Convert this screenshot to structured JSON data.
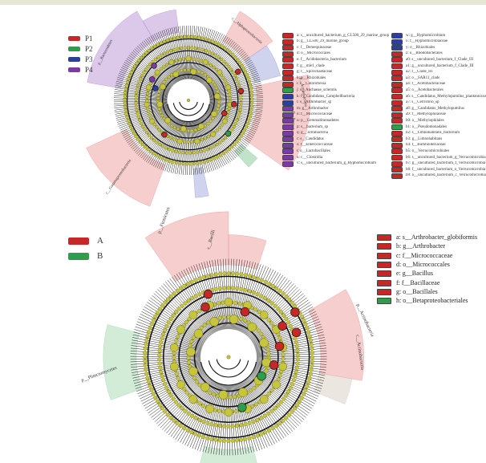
{
  "top": {
    "groups": [
      {
        "label": "P1",
        "color": "#c62828"
      },
      {
        "label": "P2",
        "color": "#2e9e4a"
      },
      {
        "label": "P3",
        "color": "#2a3f9f"
      },
      {
        "label": "P4",
        "color": "#7b3aa6"
      }
    ],
    "key_col1": [
      {
        "text": "a: s__uncultured_bacterium_g_CL500_29_marine_group",
        "color": "#c62828"
      },
      {
        "text": "b: g__CL500_29_marine_group",
        "color": "#c62828"
      },
      {
        "text": "c: f__Demequinaceae",
        "color": "#c62828"
      },
      {
        "text": "d: o__Micrococcales",
        "color": "#c62828"
      },
      {
        "text": "e: f__Acidobacteria_bacterium",
        "color": "#c62828"
      },
      {
        "text": "f: g__mle1_clade",
        "color": "#c62828"
      },
      {
        "text": "g: f__Spirochaetaceae",
        "color": "#c62828"
      },
      {
        "text": "h: o__Rhizobiales",
        "color": "#c62828"
      },
      {
        "text": "i: c__Chloroflexia",
        "color": "#c62828"
      },
      {
        "text": "j: s__Anchaeae_sclerotis",
        "color": "#2e9e4a"
      },
      {
        "text": "k: f__Candidatus_Campbellbacteria",
        "color": "#2a3f9f"
      },
      {
        "text": "l: s__Arthrobacter_sp",
        "color": "#2a3f9f"
      },
      {
        "text": "m: g__Arthrobacter",
        "color": "#7b3aa6"
      },
      {
        "text": "n: f__Micrococcaceae",
        "color": "#7b3aa6"
      },
      {
        "text": "o: p__Gemmatimonadetes",
        "color": "#7b3aa6"
      },
      {
        "text": "p: s__bacterium_sp",
        "color": "#7b3aa6"
      },
      {
        "text": "q: g__Terrabacteria",
        "color": "#7b3aa6"
      },
      {
        "text": "r: s__Candidatus",
        "color": "#7b3aa6"
      },
      {
        "text": "s: f__Enterococcaceae",
        "color": "#7b3aa6"
      },
      {
        "text": "t: o__Lactobacillales",
        "color": "#7b3aa6"
      },
      {
        "text": "u: c__Clostridia",
        "color": "#7b3aa6"
      },
      {
        "text": "v: s__uncultured_bacterium_g_Hyphomicrobium",
        "color": "#7b3aa6"
      }
    ],
    "key_col2": [
      {
        "text": "w: g__Hyphomicrobium",
        "color": "#2a3f9f"
      },
      {
        "text": "x: f__Hyphomicrobiaceae",
        "color": "#2a3f9f"
      },
      {
        "text": "y: o__Rhizobiales",
        "color": "#2a3f9f"
      },
      {
        "text": "z: o__Rhodobacterales",
        "color": "#c62828"
      },
      {
        "text": "a0: s__uncultured_bacterium_f_Clade_III",
        "color": "#c62828"
      },
      {
        "text": "a1: g__uncultured_bacterium_f_Clade_III",
        "color": "#c62828"
      },
      {
        "text": "a2: f__Clade_III",
        "color": "#c62828"
      },
      {
        "text": "a3: o__SAR11_clade",
        "color": "#c62828"
      },
      {
        "text": "a4: f__Acetobacteraceae",
        "color": "#c62828"
      },
      {
        "text": "a5: o__Acetobacterales",
        "color": "#c62828"
      },
      {
        "text": "a6: s__Candidatus_Methylopumilus_planktonicus",
        "color": "#c62828"
      },
      {
        "text": "a7: s__Cellvibrio_sp",
        "color": "#c62828"
      },
      {
        "text": "a8: g__Candidatus_Methylopumilus",
        "color": "#c62828"
      },
      {
        "text": "a9: f__Methylophilaceae",
        "color": "#c62828"
      },
      {
        "text": "b0: o__Methylophilales",
        "color": "#c62828"
      },
      {
        "text": "b1: o__Pseudomonadales",
        "color": "#2e9e4a"
      },
      {
        "text": "b2: s__Limnohabitans_bacterium",
        "color": "#c62828"
      },
      {
        "text": "b3: g__Limnohabitans",
        "color": "#c62828"
      },
      {
        "text": "b4: f__Burkholderiaceae",
        "color": "#c62828"
      },
      {
        "text": "b5: o__Verrucomicrobiales",
        "color": "#c62828"
      },
      {
        "text": "b6: s__uncultured_bacterium_g_Verrucomicrobia",
        "color": "#c62828"
      },
      {
        "text": "b7: g__uncultured_bacterium_f_Verrucomicrobia",
        "color": "#c62828"
      },
      {
        "text": "b8: f__uncultured_bacterium_o_Verrucomicrobia",
        "color": "#c62828"
      },
      {
        "text": "b9: o__uncultured_bacterium_c_Verrucomicrobia",
        "color": "#c62828"
      }
    ],
    "clade_labels": [
      "p__Actinobacteria",
      "p__Proteobacteria",
      "c__Gammaproteobacteria",
      "p__Bacteroidetes",
      "c__Alphaproteobacteria"
    ]
  },
  "bottom": {
    "groups": [
      {
        "label": "A",
        "color": "#c62828"
      },
      {
        "label": "B",
        "color": "#2e9e4a"
      }
    ],
    "key": [
      {
        "text": "a: s__Arthrobacter_globiformis",
        "color": "#c62828"
      },
      {
        "text": "b: g__Arthrobacter",
        "color": "#c62828"
      },
      {
        "text": "c: f__Micrococcaceae",
        "color": "#c62828"
      },
      {
        "text": "d: o__Micrococcales",
        "color": "#c62828"
      },
      {
        "text": "e: g__Bacillus",
        "color": "#c62828"
      },
      {
        "text": "f: f__Bacillaceae",
        "color": "#c62828"
      },
      {
        "text": "g: o__Bacillales",
        "color": "#c62828"
      },
      {
        "text": "h: o__Betaproteobacteriales",
        "color": "#2e9e4a"
      }
    ],
    "clade_labels": [
      "p__Firmicutes",
      "c__Bacilli",
      "p__Actinobacteria",
      "c__Actinobacteria",
      "p__Planctomycetes",
      "g"
    ]
  }
}
